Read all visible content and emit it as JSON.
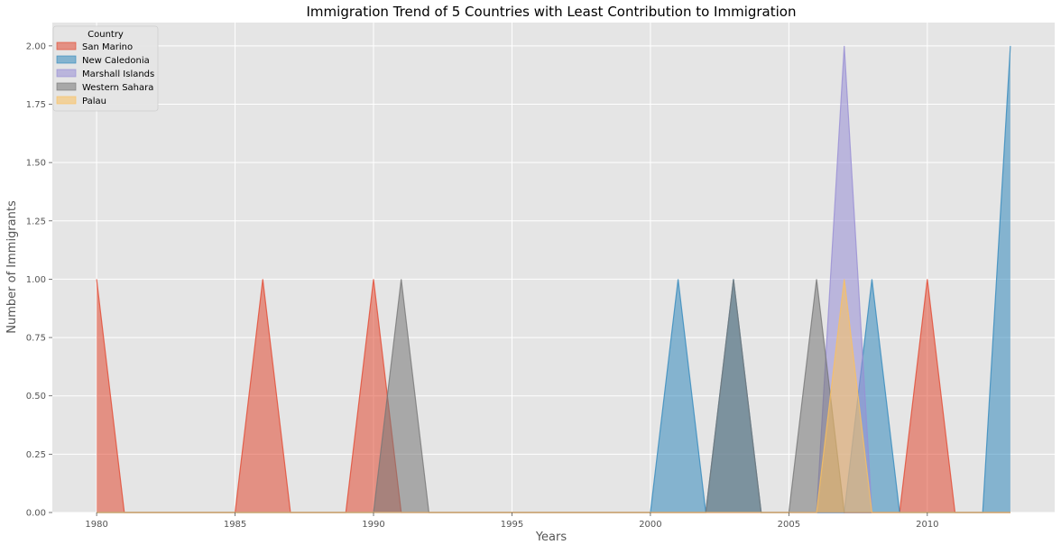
{
  "chart_data": {
    "type": "area",
    "stacked": false,
    "title": "Immigration Trend of 5 Countries with Least Contribution to Immigration",
    "xlabel": "Years",
    "ylabel": "Number of Immigrants",
    "xlim": [
      1978.4,
      2014.6
    ],
    "ylim": [
      0,
      2.1
    ],
    "x_ticks": [
      1980,
      1985,
      1990,
      1995,
      2000,
      2005,
      2010
    ],
    "x_tick_labels": [
      "1980",
      "1985",
      "1990",
      "1995",
      "2000",
      "2005",
      "2010"
    ],
    "y_ticks": [
      0,
      0.25,
      0.5,
      0.75,
      1.0,
      1.25,
      1.5,
      1.75,
      2.0
    ],
    "y_tick_labels": [
      "0.00",
      "0.25",
      "0.50",
      "0.75",
      "1.00",
      "1.25",
      "1.50",
      "1.75",
      "2.00"
    ],
    "grid": true,
    "background": "#e5e5e5",
    "legend": {
      "title": "Country",
      "placement": "top-left"
    },
    "x": [
      1980,
      1981,
      1982,
      1983,
      1984,
      1985,
      1986,
      1987,
      1988,
      1989,
      1990,
      1991,
      1992,
      1993,
      1994,
      1995,
      1996,
      1997,
      1998,
      1999,
      2000,
      2001,
      2002,
      2003,
      2004,
      2005,
      2006,
      2007,
      2008,
      2009,
      2010,
      2011,
      2012,
      2013
    ],
    "series": [
      {
        "name": "San Marino",
        "color": "#E24A33",
        "values": [
          1,
          0,
          0,
          0,
          0,
          0,
          1,
          0,
          0,
          0,
          1,
          0,
          0,
          0,
          0,
          0,
          0,
          0,
          0,
          0,
          0,
          0,
          0,
          0,
          0,
          0,
          0,
          0,
          0,
          0,
          1,
          0,
          0,
          0
        ]
      },
      {
        "name": "New Caledonia",
        "color": "#348ABD",
        "values": [
          0,
          0,
          0,
          0,
          0,
          0,
          0,
          0,
          0,
          0,
          0,
          0,
          0,
          0,
          0,
          0,
          0,
          0,
          0,
          0,
          0,
          1,
          0,
          1,
          0,
          0,
          0,
          0,
          1,
          0,
          0,
          0,
          0,
          2
        ]
      },
      {
        "name": "Marshall Islands",
        "color": "#988ED5",
        "values": [
          0,
          0,
          0,
          0,
          0,
          0,
          0,
          0,
          0,
          0,
          0,
          0,
          0,
          0,
          0,
          0,
          0,
          0,
          0,
          0,
          0,
          0,
          0,
          0,
          0,
          0,
          0,
          2,
          0,
          0,
          0,
          0,
          0,
          0
        ]
      },
      {
        "name": "Western Sahara",
        "color": "#777777",
        "values": [
          0,
          0,
          0,
          0,
          0,
          0,
          0,
          0,
          0,
          0,
          0,
          1,
          0,
          0,
          0,
          0,
          0,
          0,
          0,
          0,
          0,
          0,
          0,
          1,
          0,
          0,
          1,
          0,
          0,
          0,
          0,
          0,
          0,
          0
        ]
      },
      {
        "name": "Palau",
        "color": "#FBC15E",
        "values": [
          0,
          0,
          0,
          0,
          0,
          0,
          0,
          0,
          0,
          0,
          0,
          0,
          0,
          0,
          0,
          0,
          0,
          0,
          0,
          0,
          0,
          0,
          0,
          0,
          0,
          0,
          0,
          1,
          0,
          0,
          0,
          0,
          0,
          0
        ]
      }
    ]
  }
}
